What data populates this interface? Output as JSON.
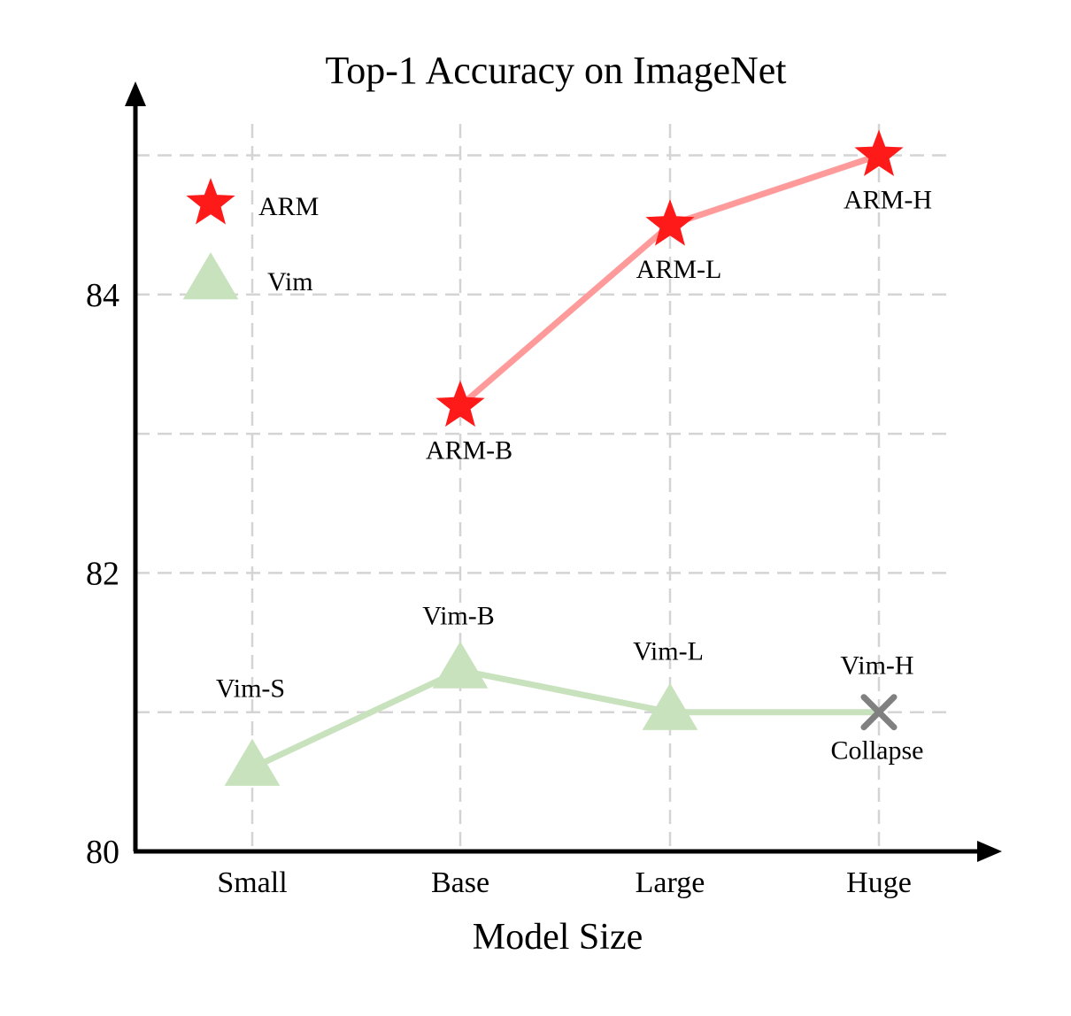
{
  "chart_data": {
    "type": "line",
    "title": "Top-1 Accuracy on ImageNet",
    "xlabel": "Model Size",
    "ylabel": "",
    "categories": [
      "Small",
      "Base",
      "Large",
      "Huge"
    ],
    "ylim": [
      80,
      85.1
    ],
    "yticks": [
      80,
      82,
      84
    ],
    "ygrid": [
      81,
      82,
      83,
      84,
      85
    ],
    "grid": true,
    "legend_position": "top-left",
    "series": [
      {
        "name": "ARM",
        "marker": "star",
        "marker_color": "#ff1a1a",
        "line_color": "#ff9a9a",
        "points": [
          {
            "x": "Base",
            "y": 83.2,
            "label": "ARM-B"
          },
          {
            "x": "Large",
            "y": 84.5,
            "label": "ARM-L"
          },
          {
            "x": "Huge",
            "y": 85.0,
            "label": "ARM-H"
          }
        ]
      },
      {
        "name": "Vim",
        "marker": "triangle",
        "marker_color": "#c8e2bd",
        "line_color": "#c8e2bd",
        "points": [
          {
            "x": "Small",
            "y": 80.6,
            "label": "Vim-S"
          },
          {
            "x": "Base",
            "y": 81.3,
            "label": "Vim-B"
          },
          {
            "x": "Large",
            "y": 81.0,
            "label": "Vim-L"
          },
          {
            "x": "Huge",
            "y": 81.0,
            "label": "Vim-H",
            "marker": "cross",
            "marker_color": "#808080",
            "note": "Collapse"
          }
        ]
      }
    ]
  }
}
